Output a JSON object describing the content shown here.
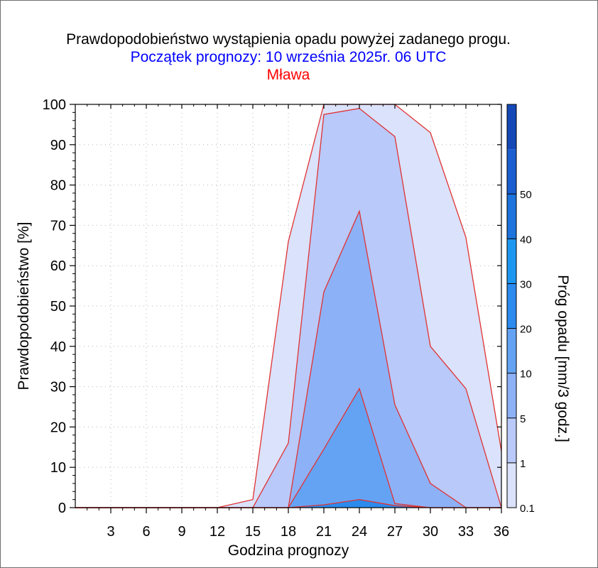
{
  "chart_data": {
    "type": "area",
    "title": "Prawdopodobieństwo wystąpienia opadu powyżej zadanego progu.",
    "subtitle": "Początek prognozy: 10 września 2025r. 06 UTC",
    "location": "Mława",
    "xlabel": "Godzina prognozy",
    "ylabel": "Prawdopodobieństwo [%]",
    "colorbar_label": "Próg opadu [mm/3 godz.]",
    "xlim": [
      0,
      36
    ],
    "ylim": [
      0,
      100
    ],
    "x_ticks": [
      3,
      6,
      9,
      12,
      15,
      18,
      21,
      24,
      27,
      30,
      33,
      36
    ],
    "y_ticks": [
      0,
      10,
      20,
      30,
      40,
      50,
      60,
      70,
      80,
      90,
      100
    ],
    "x": [
      0,
      3,
      6,
      9,
      12,
      15,
      18,
      21,
      24,
      27,
      30,
      33,
      36
    ],
    "series": [
      {
        "name": "0.1",
        "color": "#dbe2fb",
        "values": [
          0,
          0,
          0,
          0,
          0,
          2,
          66,
          100,
          100,
          100,
          93,
          67,
          14
        ]
      },
      {
        "name": "1",
        "color": "#b9c9f9",
        "values": [
          0,
          0,
          0,
          0,
          0,
          0,
          16,
          97.5,
          99,
          92,
          40,
          29.5,
          0
        ]
      },
      {
        "name": "5",
        "color": "#8db1f6",
        "values": [
          0,
          0,
          0,
          0,
          0,
          0,
          0,
          53.5,
          73.5,
          25.5,
          6,
          0,
          0
        ]
      },
      {
        "name": "10",
        "color": "#64a3f4",
        "values": [
          0,
          0,
          0,
          0,
          0,
          0,
          0,
          14.5,
          29.5,
          1,
          0,
          0,
          0
        ]
      },
      {
        "name": "20",
        "color": "#2b8bee",
        "values": [
          0,
          0,
          0,
          0,
          0,
          0,
          0,
          0.7,
          2,
          0.5,
          0,
          0,
          0
        ]
      }
    ],
    "colorbar": {
      "labels": [
        "0.1",
        "1",
        "5",
        "10",
        "20",
        "30",
        "40",
        "50"
      ],
      "colors": [
        "#dbe2fb",
        "#b9c9f9",
        "#8db1f6",
        "#64a3f4",
        "#2b8bee",
        "#1e97f1",
        "#1d74dc",
        "#1a5ed0",
        "#1448b7"
      ]
    },
    "grid": true,
    "outline_color": "#e03232"
  }
}
